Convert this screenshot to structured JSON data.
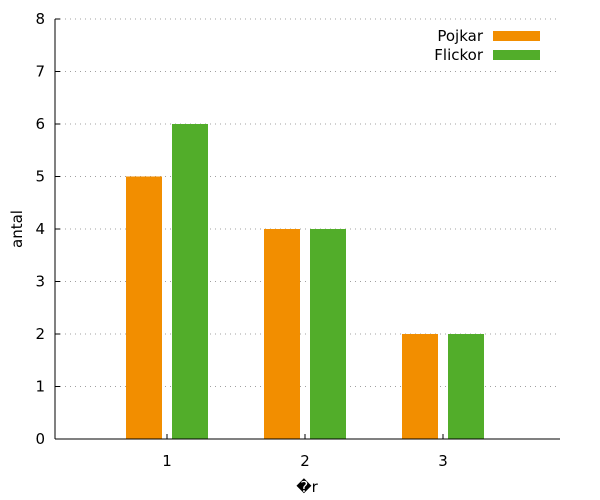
{
  "chart_data": {
    "type": "bar",
    "categories": [
      "1",
      "2",
      "3"
    ],
    "series": [
      {
        "name": "Pojkar",
        "values": [
          5,
          4,
          2
        ],
        "color": "#f28e00"
      },
      {
        "name": "Flickor",
        "values": [
          6,
          4,
          2
        ],
        "color": "#52ad2a"
      }
    ],
    "xlabel": "�r",
    "ylabel": "antal",
    "ylim": [
      0,
      8
    ],
    "yticks": [
      "0",
      "1",
      "2",
      "3",
      "4",
      "5",
      "6",
      "7",
      "8"
    ],
    "grid": true,
    "grid_color": "#a0a0a0",
    "legend_position": "top-right"
  }
}
